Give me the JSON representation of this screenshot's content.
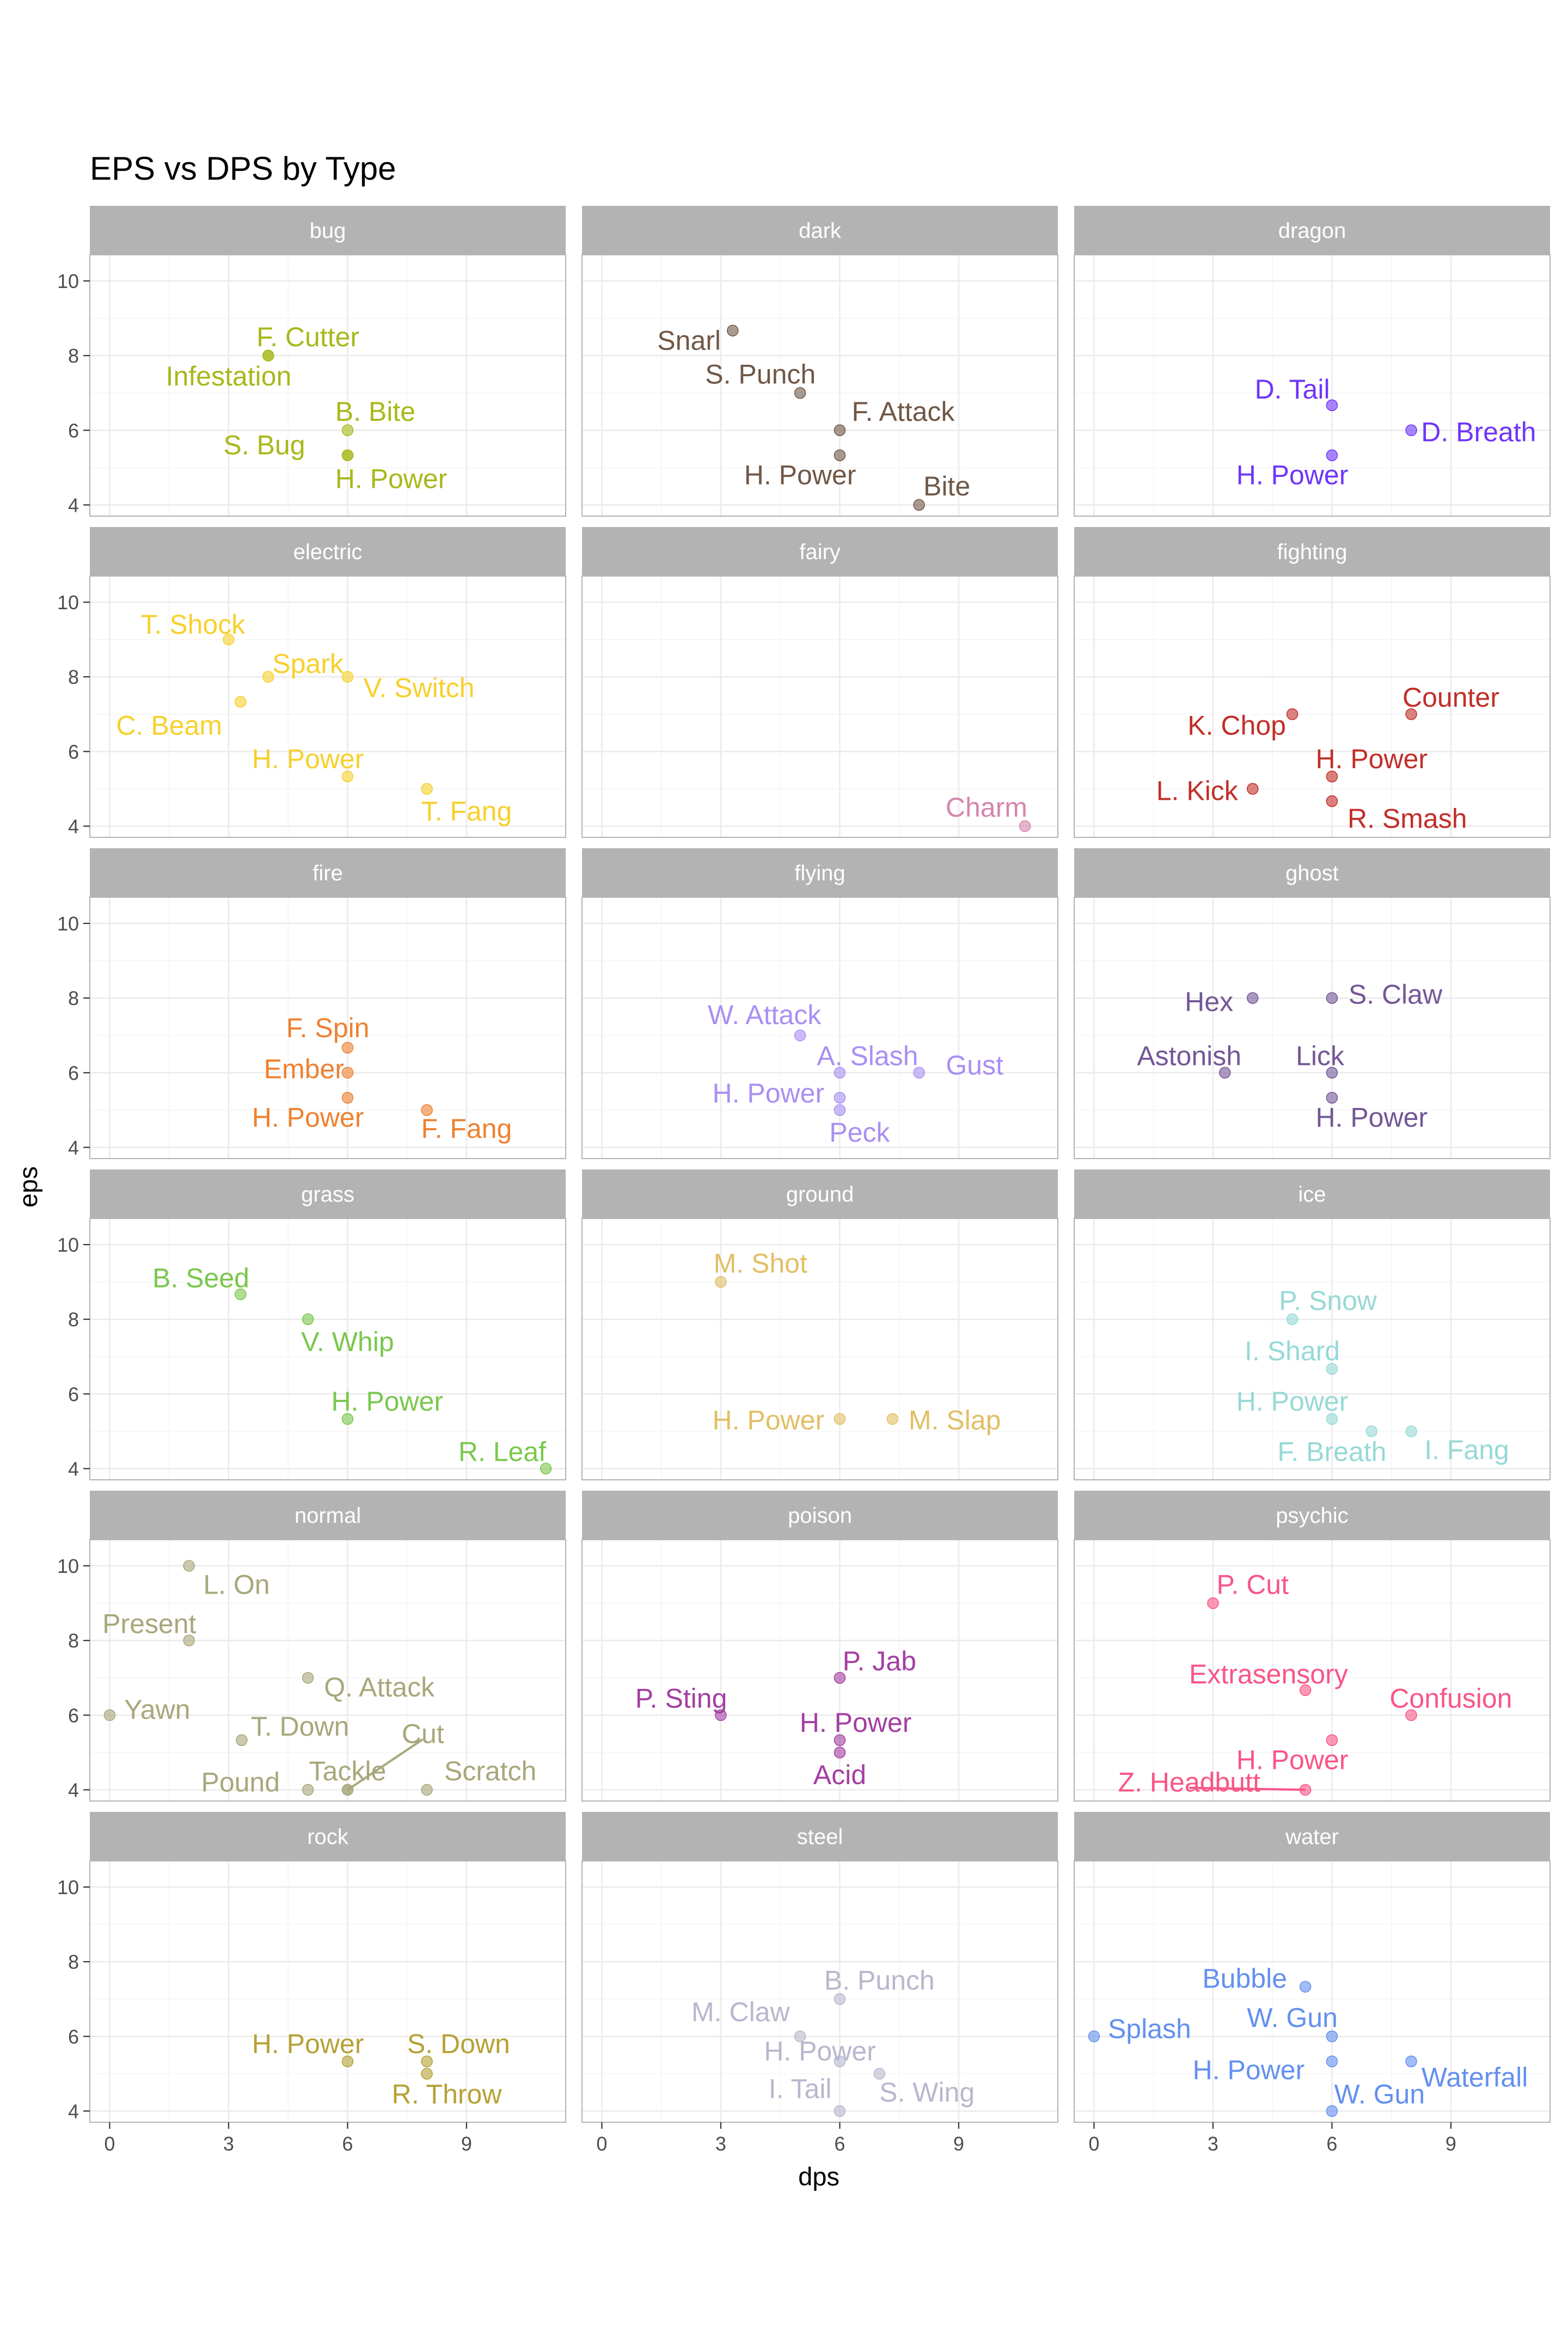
{
  "chart_data": {
    "type": "scatter",
    "title": "EPS vs DPS by Type",
    "xlabel": "dps",
    "ylabel": "eps",
    "xlim": [
      -0.5,
      11.5
    ],
    "ylim": [
      3.7,
      10.7
    ],
    "xticks": [
      0,
      3,
      6,
      9
    ],
    "yticks": [
      4,
      6,
      8,
      10
    ],
    "grid": true,
    "legend": "none",
    "facets": [
      {
        "name": "bug",
        "color": "#A6B91A",
        "points": [
          {
            "label": "F. Cutter",
            "x": 4.0,
            "y": 8.0,
            "lx": 5.0,
            "ly": 8.5
          },
          {
            "label": "Infestation",
            "x": 4.0,
            "y": 8.0,
            "lx": 3.0,
            "ly": 7.45
          },
          {
            "label": "B. Bite",
            "x": 6.0,
            "y": 6.0,
            "lx": 6.7,
            "ly": 6.5
          },
          {
            "label": "S. Bug",
            "x": 6.0,
            "y": 5.33,
            "lx": 3.9,
            "ly": 5.6
          },
          {
            "label": "H. Power",
            "x": 6.0,
            "y": 5.33,
            "lx": 7.1,
            "ly": 4.7
          }
        ]
      },
      {
        "name": "dark",
        "color": "#705746",
        "points": [
          {
            "label": "Snarl",
            "x": 3.3,
            "y": 8.67,
            "lx": 2.2,
            "ly": 8.4
          },
          {
            "label": "S. Punch",
            "x": 5.0,
            "y": 7.0,
            "lx": 4.0,
            "ly": 7.5
          },
          {
            "label": "F. Attack",
            "x": 6.0,
            "y": 6.0,
            "lx": 7.6,
            "ly": 6.5
          },
          {
            "label": "H. Power",
            "x": 6.0,
            "y": 5.33,
            "lx": 5.0,
            "ly": 4.8
          },
          {
            "label": "Bite",
            "x": 8.0,
            "y": 4.0,
            "lx": 8.7,
            "ly": 4.5
          }
        ]
      },
      {
        "name": "dragon",
        "color": "#6F35FC",
        "points": [
          {
            "label": "D. Tail",
            "x": 6.0,
            "y": 6.67,
            "lx": 5.0,
            "ly": 7.1
          },
          {
            "label": "D. Breath",
            "x": 8.0,
            "y": 6.0,
            "lx": 9.7,
            "ly": 5.95
          },
          {
            "label": "H. Power",
            "x": 6.0,
            "y": 5.33,
            "lx": 5.0,
            "ly": 4.8
          }
        ]
      },
      {
        "name": "electric",
        "color": "#F7D02C",
        "points": [
          {
            "label": "T. Shock",
            "x": 3.0,
            "y": 9.0,
            "lx": 2.1,
            "ly": 9.4
          },
          {
            "label": "Spark",
            "x": 4.0,
            "y": 8.0,
            "lx": 5.0,
            "ly": 8.35
          },
          {
            "label": "V. Switch",
            "x": 6.0,
            "y": 8.0,
            "lx": 7.8,
            "ly": 7.7
          },
          {
            "label": "C. Beam",
            "x": 3.3,
            "y": 7.33,
            "lx": 1.5,
            "ly": 6.7
          },
          {
            "label": "H. Power",
            "x": 6.0,
            "y": 5.33,
            "lx": 5.0,
            "ly": 5.8
          },
          {
            "label": "T. Fang",
            "x": 8.0,
            "y": 5.0,
            "lx": 9.0,
            "ly": 4.4
          }
        ]
      },
      {
        "name": "fairy",
        "color": "#D685AD",
        "points": [
          {
            "label": "Charm",
            "x": 10.67,
            "y": 4.0,
            "lx": 9.7,
            "ly": 4.5
          }
        ]
      },
      {
        "name": "fighting",
        "color": "#C22E28",
        "points": [
          {
            "label": "Counter",
            "x": 8.0,
            "y": 7.0,
            "lx": 9.0,
            "ly": 7.45
          },
          {
            "label": "K. Chop",
            "x": 5.0,
            "y": 7.0,
            "lx": 3.6,
            "ly": 6.7
          },
          {
            "label": "H. Power",
            "x": 6.0,
            "y": 5.33,
            "lx": 7.0,
            "ly": 5.8
          },
          {
            "label": "L. Kick",
            "x": 4.0,
            "y": 5.0,
            "lx": 2.6,
            "ly": 4.95
          },
          {
            "label": "R. Smash",
            "x": 6.0,
            "y": 4.67,
            "lx": 7.9,
            "ly": 4.2
          }
        ]
      },
      {
        "name": "fire",
        "color": "#EE8130",
        "points": [
          {
            "label": "F. Spin",
            "x": 6.0,
            "y": 6.67,
            "lx": 5.5,
            "ly": 7.2
          },
          {
            "label": "Ember",
            "x": 6.0,
            "y": 6.0,
            "lx": 4.9,
            "ly": 6.1
          },
          {
            "label": "H. Power",
            "x": 6.0,
            "y": 5.33,
            "lx": 5.0,
            "ly": 4.8
          },
          {
            "label": "F. Fang",
            "x": 8.0,
            "y": 5.0,
            "lx": 9.0,
            "ly": 4.5
          }
        ]
      },
      {
        "name": "flying",
        "color": "#A98FF3",
        "points": [
          {
            "label": "W. Attack",
            "x": 5.0,
            "y": 7.0,
            "lx": 4.1,
            "ly": 7.55
          },
          {
            "label": "A. Slash",
            "x": 6.0,
            "y": 6.0,
            "lx": 6.7,
            "ly": 6.45
          },
          {
            "label": "Gust",
            "x": 8.0,
            "y": 6.0,
            "lx": 9.4,
            "ly": 6.2
          },
          {
            "label": "H. Power",
            "x": 6.0,
            "y": 5.33,
            "lx": 4.2,
            "ly": 5.45
          },
          {
            "label": "Peck",
            "x": 6.0,
            "y": 5.0,
            "lx": 6.5,
            "ly": 4.4
          }
        ]
      },
      {
        "name": "ghost",
        "color": "#735797",
        "points": [
          {
            "label": "Hex",
            "x": 4.0,
            "y": 8.0,
            "lx": 2.9,
            "ly": 7.9
          },
          {
            "label": "S. Claw",
            "x": 6.0,
            "y": 8.0,
            "lx": 7.6,
            "ly": 8.1
          },
          {
            "label": "Astonish",
            "x": 3.3,
            "y": 6.0,
            "lx": 2.4,
            "ly": 6.45
          },
          {
            "label": "Lick",
            "x": 6.0,
            "y": 6.0,
            "lx": 5.7,
            "ly": 6.45
          },
          {
            "label": "H. Power",
            "x": 6.0,
            "y": 5.33,
            "lx": 7.0,
            "ly": 4.8
          }
        ]
      },
      {
        "name": "grass",
        "color": "#7AC74C",
        "points": [
          {
            "label": "B. Seed",
            "x": 3.3,
            "y": 8.67,
            "lx": 2.3,
            "ly": 9.1
          },
          {
            "label": "V. Whip",
            "x": 5.0,
            "y": 8.0,
            "lx": 6.0,
            "ly": 7.4
          },
          {
            "label": "H. Power",
            "x": 6.0,
            "y": 5.33,
            "lx": 7.0,
            "ly": 5.8
          },
          {
            "label": "R. Leaf",
            "x": 11.0,
            "y": 4.0,
            "lx": 9.9,
            "ly": 4.45
          }
        ]
      },
      {
        "name": "ground",
        "color": "#E2BF65",
        "points": [
          {
            "label": "M. Shot",
            "x": 3.0,
            "y": 9.0,
            "lx": 4.0,
            "ly": 9.5
          },
          {
            "label": "H. Power",
            "x": 6.0,
            "y": 5.33,
            "lx": 4.2,
            "ly": 5.3
          },
          {
            "label": "M. Slap",
            "x": 7.33,
            "y": 5.33,
            "lx": 8.9,
            "ly": 5.3
          }
        ]
      },
      {
        "name": "ice",
        "color": "#96D9D6",
        "points": [
          {
            "label": "P. Snow",
            "x": 5.0,
            "y": 8.0,
            "lx": 5.9,
            "ly": 8.5
          },
          {
            "label": "I. Shard",
            "x": 6.0,
            "y": 6.67,
            "lx": 5.0,
            "ly": 7.15
          },
          {
            "label": "H. Power",
            "x": 6.0,
            "y": 5.33,
            "lx": 5.0,
            "ly": 5.8
          },
          {
            "label": "F. Breath",
            "x": 7.0,
            "y": 5.0,
            "lx": 6.0,
            "ly": 4.45
          },
          {
            "label": "I. Fang",
            "x": 8.0,
            "y": 5.0,
            "lx": 9.4,
            "ly": 4.5
          }
        ]
      },
      {
        "name": "normal",
        "color": "#A8A77A",
        "points": [
          {
            "label": "L. On",
            "x": 2.0,
            "y": 10.0,
            "lx": 3.2,
            "ly": 9.5
          },
          {
            "label": "Present",
            "x": 2.0,
            "y": 8.0,
            "lx": 1.0,
            "ly": 8.45
          },
          {
            "label": "Q. Attack",
            "x": 5.0,
            "y": 7.0,
            "lx": 6.8,
            "ly": 6.75
          },
          {
            "label": "Yawn",
            "x": 0.0,
            "y": 6.0,
            "lx": 1.2,
            "ly": 6.15
          },
          {
            "label": "T. Down",
            "x": 3.33,
            "y": 5.33,
            "lx": 4.8,
            "ly": 5.7
          },
          {
            "label": "Cut",
            "x": 6.0,
            "y": 4.0,
            "lx": 7.9,
            "ly": 5.5,
            "leader": true
          },
          {
            "label": "Tackle",
            "x": 6.0,
            "y": 4.0,
            "lx": 6.0,
            "ly": 4.5
          },
          {
            "label": "Pound",
            "x": 5.0,
            "y": 4.0,
            "lx": 3.3,
            "ly": 4.2
          },
          {
            "label": "Scratch",
            "x": 8.0,
            "y": 4.0,
            "lx": 9.6,
            "ly": 4.5
          }
        ]
      },
      {
        "name": "poison",
        "color": "#A33EA1",
        "points": [
          {
            "label": "P. Jab",
            "x": 6.0,
            "y": 7.0,
            "lx": 7.0,
            "ly": 7.45
          },
          {
            "label": "P. Sting",
            "x": 3.0,
            "y": 6.0,
            "lx": 2.0,
            "ly": 6.45
          },
          {
            "label": "H. Power",
            "x": 6.0,
            "y": 5.33,
            "lx": 6.4,
            "ly": 5.8
          },
          {
            "label": "Acid",
            "x": 6.0,
            "y": 5.0,
            "lx": 6.0,
            "ly": 4.4
          }
        ]
      },
      {
        "name": "psychic",
        "color": "#F95587",
        "points": [
          {
            "label": "P. Cut",
            "x": 3.0,
            "y": 9.0,
            "lx": 4.0,
            "ly": 9.5
          },
          {
            "label": "Extrasensory",
            "x": 5.33,
            "y": 6.67,
            "lx": 4.4,
            "ly": 7.1
          },
          {
            "label": "Confusion",
            "x": 8.0,
            "y": 6.0,
            "lx": 9.0,
            "ly": 6.45
          },
          {
            "label": "H. Power",
            "x": 6.0,
            "y": 5.33,
            "lx": 5.0,
            "ly": 4.8
          },
          {
            "label": "Z. Headbutt",
            "x": 5.33,
            "y": 4.0,
            "lx": 2.4,
            "ly": 4.2,
            "leader": true
          }
        ]
      },
      {
        "name": "rock",
        "color": "#B6A136",
        "points": [
          {
            "label": "H. Power",
            "x": 6.0,
            "y": 5.33,
            "lx": 5.0,
            "ly": 5.8
          },
          {
            "label": "S. Down",
            "x": 8.0,
            "y": 5.33,
            "lx": 8.8,
            "ly": 5.8
          },
          {
            "label": "R. Throw",
            "x": 8.0,
            "y": 5.0,
            "lx": 8.5,
            "ly": 4.45
          }
        ]
      },
      {
        "name": "steel",
        "color": "#B7B7CE",
        "points": [
          {
            "label": "B. Punch",
            "x": 6.0,
            "y": 7.0,
            "lx": 7.0,
            "ly": 7.5
          },
          {
            "label": "M. Claw",
            "x": 5.0,
            "y": 6.0,
            "lx": 3.5,
            "ly": 6.65
          },
          {
            "label": "H. Power",
            "x": 6.0,
            "y": 5.33,
            "lx": 5.5,
            "ly": 5.6
          },
          {
            "label": "S. Wing",
            "x": 7.0,
            "y": 5.0,
            "lx": 8.2,
            "ly": 4.5
          },
          {
            "label": "I. Tail",
            "x": 6.0,
            "y": 4.0,
            "lx": 5.0,
            "ly": 4.6
          }
        ]
      },
      {
        "name": "water",
        "color": "#6390F0",
        "points": [
          {
            "label": "Bubble",
            "x": 5.33,
            "y": 7.33,
            "lx": 3.8,
            "ly": 7.55
          },
          {
            "label": "W. Gun",
            "x": 6.0,
            "y": 6.0,
            "lx": 5.0,
            "ly": 6.5
          },
          {
            "label": "Splash",
            "x": 0.0,
            "y": 6.0,
            "lx": 1.4,
            "ly": 6.2
          },
          {
            "label": "H. Power",
            "x": 6.0,
            "y": 5.33,
            "lx": 3.9,
            "ly": 5.1
          },
          {
            "label": "Waterfall",
            "x": 8.0,
            "y": 5.33,
            "lx": 9.6,
            "ly": 4.9
          },
          {
            "label": "W. Gun",
            "x": 6.0,
            "y": 4.0,
            "lx": 7.2,
            "ly": 4.45
          }
        ]
      }
    ]
  }
}
